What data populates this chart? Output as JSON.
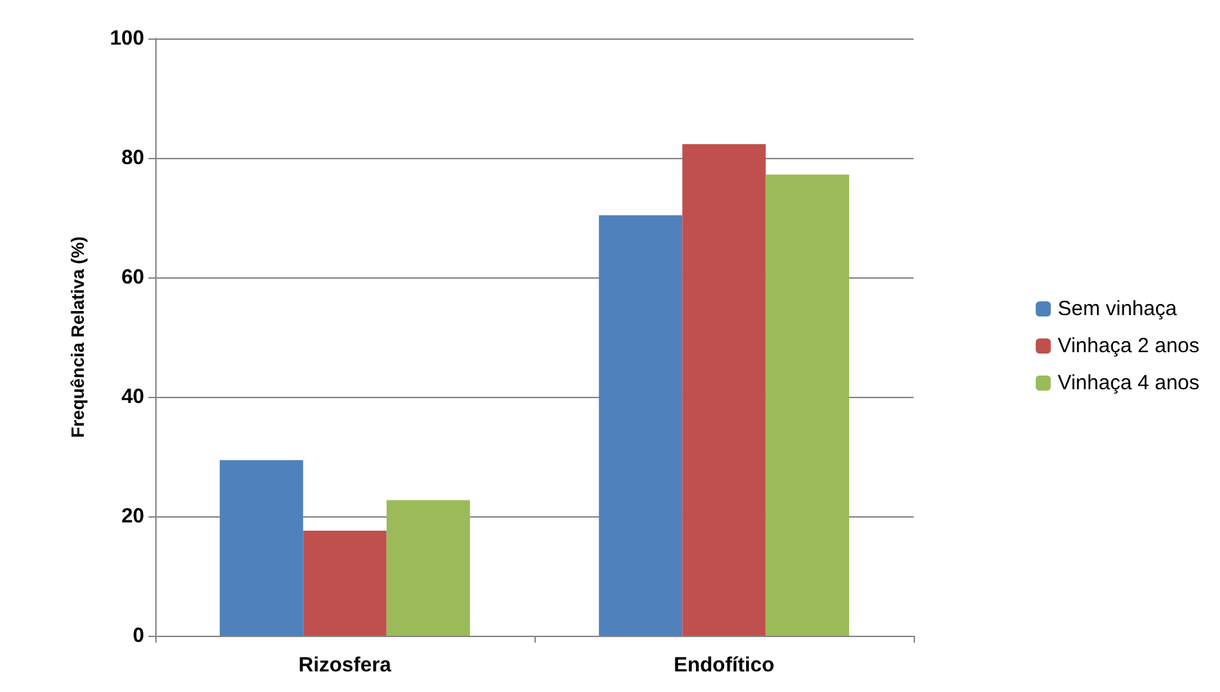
{
  "chart_data": {
    "type": "bar",
    "ylabel": "Frequência Relativa (%)",
    "categories": [
      "Rizosfera",
      "Endofítico"
    ],
    "series": [
      {
        "name": "Sem vinhaça",
        "color": "#4f81bd",
        "values": [
          29.4,
          70.4
        ]
      },
      {
        "name": "Vinhaça 2 anos",
        "color": "#c0504d",
        "values": [
          17.6,
          82.3
        ]
      },
      {
        "name": "Vinhaça 4 anos",
        "color": "#9bbb59",
        "values": [
          22.7,
          77.2
        ]
      }
    ],
    "ylim": [
      0,
      100
    ],
    "yticks": [
      0,
      20,
      40,
      60,
      80,
      100
    ],
    "grid": "y",
    "legend": "right"
  }
}
